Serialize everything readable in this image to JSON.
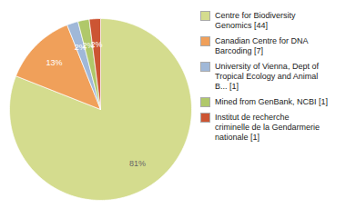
{
  "chart_data": {
    "type": "pie",
    "labels": [
      "Centre for Biodiversity\nGenomics [44]",
      "Canadian Centre for DNA\nBarcoding [7]",
      "University of Vienna, Dept of\nTropical Ecology and Animal\nB... [1]",
      "Mined from GenBank, NCBI [1]",
      "Institut de recherche\ncriminelle de la Gendarmerie\nnationale [1]"
    ],
    "values": [
      81,
      13,
      2,
      2,
      2
    ],
    "value_labels": [
      "81%",
      "13%",
      "2%",
      "2%",
      "2%"
    ],
    "colors": [
      "#d4dc8e",
      "#f0a05a",
      "#a0b8d8",
      "#b0c86a",
      "#cc5533"
    ],
    "data_labels": true,
    "legend": "right"
  }
}
